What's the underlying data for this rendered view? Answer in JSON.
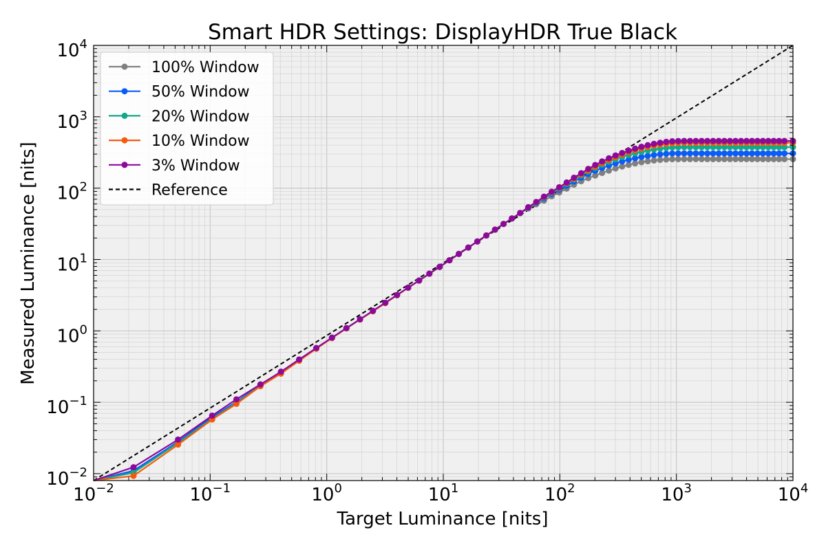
{
  "chart_data": {
    "type": "line",
    "title": "Smart HDR Settings: DisplayHDR True Black",
    "xlabel": "Target Luminance [nits]",
    "ylabel": "Measured Luminance [nits]",
    "xscale": "log",
    "yscale": "log",
    "xlim": [
      0.01,
      10000
    ],
    "ylim": [
      0.008,
      10000
    ],
    "x_ticks": [
      {
        "base": "10",
        "exp": "−2",
        "value": 0.01
      },
      {
        "base": "10",
        "exp": "−1",
        "value": 0.1
      },
      {
        "base": "10",
        "exp": "0",
        "value": 1
      },
      {
        "base": "10",
        "exp": "1",
        "value": 10
      },
      {
        "base": "10",
        "exp": "2",
        "value": 100
      },
      {
        "base": "10",
        "exp": "3",
        "value": 1000
      },
      {
        "base": "10",
        "exp": "4",
        "value": 10000
      }
    ],
    "y_ticks": [
      {
        "base": "10",
        "exp": "−2",
        "value": 0.01
      },
      {
        "base": "10",
        "exp": "−1",
        "value": 0.1
      },
      {
        "base": "10",
        "exp": "0",
        "value": 1
      },
      {
        "base": "10",
        "exp": "1",
        "value": 10
      },
      {
        "base": "10",
        "exp": "2",
        "value": 100
      },
      {
        "base": "10",
        "exp": "3",
        "value": 1000
      },
      {
        "base": "10",
        "exp": "4",
        "value": 10000
      }
    ],
    "grid": true,
    "legend_position": "top-left",
    "background": "#f0f0f0",
    "x": [
      0.01,
      0.022,
      0.053,
      0.104,
      0.168,
      0.27,
      0.405,
      0.58,
      0.814,
      1.109,
      1.475,
      1.93,
      2.49,
      3.18,
      4.01,
      5.0,
      6.2,
      7.6,
      9.3,
      11.3,
      13.6,
      16.4,
      19.6,
      23.4,
      27.8,
      32.9,
      38.8,
      45.7,
      53.6,
      62.7,
      73.1,
      85.1,
      98.8,
      114.4,
      132.2,
      152.4,
      175.3,
      201.2,
      230.4,
      263.4,
      300.5,
      342.3,
      389.4,
      442.2,
      501.4,
      567.7,
      642.0,
      725.0,
      817.7,
      921.2,
      1036.6,
      1165.3,
      1308.6,
      1468.3,
      1645.9,
      1843.5,
      2063.2,
      2307.3,
      2578.5,
      2879.7,
      3214.1,
      3585.2,
      3997.1,
      4453.8,
      4960.0,
      5521.5,
      6144.0,
      6833.8,
      7598.0,
      8444.4,
      10000
    ],
    "series": [
      {
        "name": "100% Window",
        "color": "#808080",
        "values": [
          0.0065,
          0.0105,
          0.028,
          0.061,
          0.1,
          0.175,
          0.262,
          0.392,
          0.571,
          0.8,
          1.09,
          1.45,
          1.9,
          2.47,
          3.17,
          4.03,
          5.07,
          6.33,
          7.88,
          9.75,
          11.98,
          14.71,
          17.9,
          21.7,
          26.2,
          31.5,
          37.6,
          44.8,
          52.0,
          59.5,
          66.9,
          77.0,
          87.0,
          98.5,
          112.0,
          125.0,
          138.0,
          150.0,
          163.0,
          176.0,
          189.0,
          201.0,
          212.0,
          222.0,
          231.0,
          238.0,
          244.0,
          249.0,
          252.0,
          254.0,
          255.0,
          255.0,
          255.0,
          255.0,
          255.0,
          255.0,
          255.0,
          255.0,
          255.0,
          255.0,
          255.0,
          255.0,
          255.0,
          255.0,
          255.0,
          255.0,
          255.0,
          255.0,
          255.0,
          255.0,
          255.0
        ]
      },
      {
        "name": "50% Window",
        "color": "#0a5cf5",
        "values": [
          0.0065,
          0.011,
          0.028,
          0.062,
          0.101,
          0.176,
          0.264,
          0.394,
          0.573,
          0.802,
          1.092,
          1.452,
          1.9,
          2.47,
          3.17,
          4.03,
          5.07,
          6.33,
          7.88,
          9.75,
          11.98,
          14.71,
          17.9,
          21.7,
          26.2,
          31.5,
          37.6,
          44.8,
          53.0,
          62.0,
          72.0,
          83.0,
          95.0,
          108.0,
          124.0,
          140.0,
          158.0,
          175.0,
          191.0,
          207.0,
          222.0,
          237.0,
          250.0,
          262.0,
          273.0,
          283.0,
          291.0,
          298.0,
          303.0,
          306.0,
          307.0,
          307.0,
          307.0,
          307.0,
          307.0,
          307.0,
          307.0,
          307.0,
          307.0,
          307.0,
          307.0,
          307.0,
          307.0,
          307.0,
          307.0,
          307.0,
          307.0,
          307.0,
          307.0,
          307.0,
          307.0
        ]
      },
      {
        "name": "20% Window",
        "color": "#14a88a",
        "values": [
          0.0065,
          0.0103,
          0.027,
          0.059,
          0.098,
          0.172,
          0.258,
          0.388,
          0.568,
          0.797,
          1.087,
          1.447,
          1.9,
          2.47,
          3.17,
          4.03,
          5.07,
          6.33,
          7.88,
          9.75,
          11.98,
          14.71,
          17.9,
          21.7,
          26.2,
          31.5,
          37.6,
          44.8,
          53.5,
          63.0,
          74.0,
          86.0,
          99.0,
          115.0,
          132.0,
          151.0,
          171.0,
          192.0,
          213.0,
          234.0,
          254.0,
          273.0,
          291.0,
          307.0,
          322.0,
          336.0,
          348.0,
          358.0,
          366.0,
          371.0,
          374.0,
          375.0,
          375.0,
          375.0,
          375.0,
          375.0,
          375.0,
          375.0,
          375.0,
          375.0,
          375.0,
          375.0,
          375.0,
          375.0,
          375.0,
          375.0,
          375.0,
          375.0,
          375.0,
          375.0,
          375.0
        ]
      },
      {
        "name": "10% Window",
        "color": "#f55a0a",
        "values": [
          0.0065,
          0.0093,
          0.0255,
          0.0575,
          0.095,
          0.168,
          0.252,
          0.382,
          0.563,
          0.793,
          1.083,
          1.443,
          1.88,
          2.45,
          3.16,
          4.02,
          5.06,
          6.32,
          7.87,
          9.74,
          11.97,
          14.7,
          17.9,
          21.7,
          26.2,
          31.5,
          37.6,
          44.8,
          53.8,
          63.5,
          75.0,
          87.5,
          101.0,
          117.5,
          136.0,
          156.0,
          177.0,
          200.0,
          224.0,
          248.0,
          272.0,
          295.0,
          318.0,
          339.0,
          359.0,
          377.0,
          393.0,
          407.0,
          418.0,
          425.0,
          430.0,
          432.0,
          432.0,
          432.0,
          432.0,
          432.0,
          432.0,
          432.0,
          432.0,
          432.0,
          432.0,
          432.0,
          432.0,
          432.0,
          432.0,
          432.0,
          432.0,
          432.0,
          432.0,
          432.0,
          432.0
        ]
      },
      {
        "name": "3% Window",
        "color": "#8c0a9a",
        "values": [
          0.0075,
          0.0123,
          0.03,
          0.065,
          0.11,
          0.178,
          0.268,
          0.398,
          0.576,
          0.804,
          1.094,
          1.455,
          1.91,
          2.48,
          3.18,
          4.04,
          5.08,
          6.34,
          7.89,
          9.76,
          11.99,
          14.72,
          17.91,
          21.71,
          26.21,
          31.51,
          37.61,
          44.81,
          54.0,
          64.0,
          76.0,
          89.0,
          103.0,
          120.0,
          140.0,
          162.0,
          186.0,
          211.0,
          237.0,
          262.0,
          287.0,
          311.0,
          335.0,
          358.0,
          380.0,
          400.0,
          418.0,
          433.0,
          445.0,
          453.0,
          457.0,
          458.0,
          458.0,
          458.0,
          458.0,
          458.0,
          458.0,
          458.0,
          458.0,
          458.0,
          458.0,
          458.0,
          458.0,
          458.0,
          458.0,
          458.0,
          458.0,
          458.0,
          458.0,
          458.0,
          458.0
        ]
      }
    ],
    "reference": {
      "name": "Reference",
      "color": "#000000",
      "x": [
        0.008,
        10000
      ],
      "values": [
        0.008,
        10000
      ]
    }
  }
}
